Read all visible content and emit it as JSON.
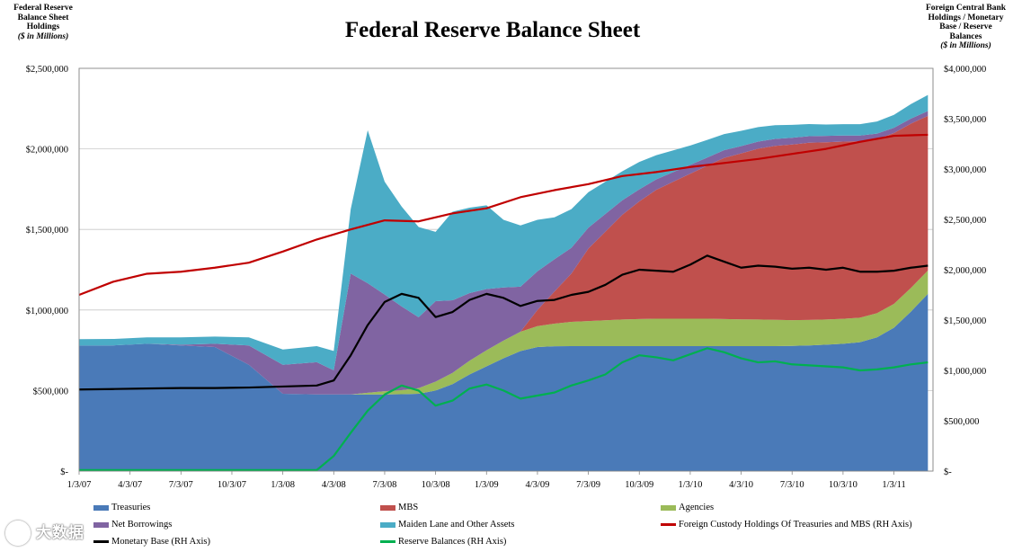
{
  "chart_data": {
    "type": "area",
    "title": "Federal Reserve Balance Sheet",
    "left_axis_title": [
      "Federal Reserve",
      "Balance Sheet",
      "Holdings"
    ],
    "left_axis_unit": "($ in Millions)",
    "right_axis_title": [
      "Foreign Central Bank",
      "Holdings / Monetary",
      "Base / Reserve",
      "Balances"
    ],
    "right_axis_unit": "($ in Millions)",
    "ylim_left": [
      0,
      2500000
    ],
    "ylim_right": [
      0,
      4000000
    ],
    "yticks_left": [
      "$-",
      "$500,000",
      "$1,000,000",
      "$1,500,000",
      "$2,000,000",
      "$2,500,000"
    ],
    "yticks_right": [
      "$-",
      "$500,000",
      "$1,000,000",
      "$1,500,000",
      "$2,000,000",
      "$2,500,000",
      "$3,000,000",
      "$3,500,000",
      "$4,000,000"
    ],
    "xticks": [
      "1/3/07",
      "4/3/07",
      "7/3/07",
      "10/3/07",
      "1/3/08",
      "4/3/08",
      "7/3/08",
      "10/3/08",
      "1/3/09",
      "4/3/09",
      "7/3/09",
      "10/3/09",
      "1/3/10",
      "4/3/10",
      "7/3/10",
      "10/3/10",
      "1/3/11"
    ],
    "x_months": [
      0,
      2,
      4,
      6,
      8,
      10,
      12,
      14,
      15,
      16,
      17,
      18,
      19,
      20,
      21,
      22,
      23,
      24,
      25,
      26,
      27,
      28,
      29,
      30,
      31,
      32,
      33,
      34,
      35,
      36,
      37,
      38,
      39,
      40,
      41,
      42,
      43,
      44,
      45,
      46,
      47,
      48,
      49,
      50
    ],
    "stacked_series": [
      {
        "name": "Treasuries",
        "color": "#4a7ab8",
        "values": [
          779000,
          780000,
          790000,
          780000,
          770000,
          660000,
          480000,
          476000,
          476000,
          476000,
          476000,
          476000,
          477000,
          480000,
          500000,
          540000,
          600000,
          650000,
          700000,
          745000,
          770000,
          775000,
          776000,
          776000,
          776000,
          776000,
          776000,
          776000,
          776000,
          776000,
          776000,
          776000,
          776000,
          776000,
          776000,
          777000,
          780000,
          785000,
          790000,
          800000,
          830000,
          890000,
          990000,
          1100000
        ]
      },
      {
        "name": "Agencies",
        "color": "#9bbb59",
        "values": [
          0,
          0,
          0,
          0,
          0,
          0,
          0,
          0,
          0,
          0,
          10000,
          20000,
          25000,
          35000,
          55000,
          70000,
          85000,
          100000,
          110000,
          120000,
          130000,
          140000,
          150000,
          155000,
          160000,
          165000,
          168000,
          170000,
          170000,
          170000,
          170000,
          168000,
          166000,
          165000,
          163000,
          160000,
          158000,
          156000,
          155000,
          152000,
          150000,
          148000,
          147000,
          145000
        ]
      },
      {
        "name": "MBS",
        "color": "#c0504d",
        "values": [
          0,
          0,
          0,
          0,
          0,
          0,
          0,
          0,
          0,
          0,
          0,
          0,
          0,
          0,
          0,
          0,
          0,
          0,
          0,
          0,
          100000,
          200000,
          300000,
          450000,
          550000,
          650000,
          730000,
          800000,
          850000,
          900000,
          950000,
          1000000,
          1030000,
          1060000,
          1080000,
          1090000,
          1100000,
          1100000,
          1100000,
          1095000,
          1080000,
          1060000,
          1020000,
          960000
        ]
      },
      {
        "name": "Net Borrowings",
        "color": "#8064a2",
        "values": [
          0,
          0,
          0,
          5000,
          20000,
          120000,
          180000,
          200000,
          150000,
          750000,
          680000,
          600000,
          520000,
          440000,
          500000,
          450000,
          420000,
          380000,
          330000,
          280000,
          240000,
          200000,
          160000,
          130000,
          110000,
          90000,
          75000,
          65000,
          60000,
          55000,
          50000,
          48000,
          45000,
          44000,
          43000,
          42000,
          41000,
          40000,
          38000,
          36000,
          35000,
          33000,
          31000,
          30000
        ]
      },
      {
        "name": "Maiden Lane and Other Assets",
        "color": "#4bacc6",
        "values": [
          40000,
          40000,
          40000,
          45000,
          45000,
          50000,
          95000,
          100000,
          120000,
          400000,
          950000,
          700000,
          620000,
          560000,
          430000,
          550000,
          530000,
          520000,
          420000,
          380000,
          320000,
          260000,
          240000,
          220000,
          200000,
          180000,
          170000,
          150000,
          135000,
          120000,
          110000,
          100000,
          95000,
          90000,
          85000,
          80000,
          75000,
          70000,
          70000,
          70000,
          75000,
          80000,
          90000,
          100000
        ]
      }
    ],
    "line_series": [
      {
        "name": "Foreign Custody Holdings Of Treasuries and MBS (RH Axis)",
        "color": "#c00000",
        "axis": "right",
        "x": [
          0,
          2,
          4,
          6,
          8,
          10,
          12,
          14,
          16,
          18,
          20,
          22,
          24,
          26,
          28,
          30,
          32,
          34,
          36,
          38,
          40,
          42,
          44,
          46,
          48,
          50
        ],
        "values": [
          1750000,
          1880000,
          1960000,
          1980000,
          2020000,
          2070000,
          2180000,
          2300000,
          2400000,
          2490000,
          2480000,
          2560000,
          2610000,
          2720000,
          2790000,
          2850000,
          2930000,
          2970000,
          3020000,
          3060000,
          3100000,
          3150000,
          3200000,
          3270000,
          3330000,
          3340000
        ]
      },
      {
        "name": "Monetary Base (RH Axis)",
        "color": "#000000",
        "axis": "right",
        "x": [
          0,
          2,
          4,
          6,
          8,
          10,
          12,
          14,
          15,
          16,
          17,
          18,
          19,
          20,
          21,
          22,
          23,
          24,
          25,
          26,
          27,
          28,
          29,
          30,
          31,
          32,
          33,
          34,
          35,
          36,
          37,
          38,
          39,
          40,
          41,
          42,
          43,
          44,
          45,
          46,
          47,
          48,
          49,
          50
        ],
        "values": [
          810000,
          815000,
          820000,
          825000,
          825000,
          830000,
          840000,
          850000,
          900000,
          1150000,
          1450000,
          1680000,
          1760000,
          1720000,
          1530000,
          1580000,
          1700000,
          1760000,
          1720000,
          1640000,
          1690000,
          1700000,
          1750000,
          1780000,
          1850000,
          1950000,
          2000000,
          1990000,
          1980000,
          2050000,
          2140000,
          2080000,
          2020000,
          2040000,
          2030000,
          2010000,
          2020000,
          2000000,
          2020000,
          1980000,
          1980000,
          1990000,
          2020000,
          2040000
        ]
      },
      {
        "name": "Reserve Balances (RH Axis)",
        "color": "#00b050",
        "axis": "right",
        "x": [
          0,
          2,
          4,
          6,
          8,
          10,
          12,
          14,
          15,
          16,
          17,
          18,
          19,
          20,
          21,
          22,
          23,
          24,
          25,
          26,
          27,
          28,
          29,
          30,
          31,
          32,
          33,
          34,
          35,
          36,
          37,
          38,
          39,
          40,
          41,
          42,
          43,
          44,
          45,
          46,
          47,
          48,
          49,
          50
        ],
        "values": [
          10000,
          10000,
          10000,
          10000,
          10000,
          10000,
          10000,
          10000,
          150000,
          380000,
          600000,
          760000,
          850000,
          800000,
          650000,
          700000,
          820000,
          860000,
          800000,
          720000,
          750000,
          780000,
          850000,
          900000,
          960000,
          1080000,
          1150000,
          1130000,
          1100000,
          1160000,
          1220000,
          1180000,
          1120000,
          1080000,
          1090000,
          1060000,
          1050000,
          1040000,
          1030000,
          1000000,
          1010000,
          1030000,
          1060000,
          1080000
        ]
      }
    ],
    "legend": [
      {
        "name": "Treasuries",
        "kind": "area",
        "color": "#4a7ab8"
      },
      {
        "name": "MBS",
        "kind": "area",
        "color": "#c0504d"
      },
      {
        "name": "Agencies",
        "kind": "area",
        "color": "#9bbb59"
      },
      {
        "name": "Net Borrowings",
        "kind": "area",
        "color": "#8064a2"
      },
      {
        "name": "Maiden Lane and Other Assets",
        "kind": "area",
        "color": "#4bacc6"
      },
      {
        "name": "Foreign Custody Holdings Of Treasuries and MBS (RH Axis)",
        "kind": "line",
        "color": "#c00000"
      },
      {
        "name": "Monetary Base (RH Axis)",
        "kind": "line",
        "color": "#000000"
      },
      {
        "name": "Reserve Balances (RH Axis)",
        "kind": "line",
        "color": "#00b050"
      }
    ],
    "grid": true,
    "legend_position": "bottom"
  },
  "watermark": {
    "text": "大数据"
  }
}
